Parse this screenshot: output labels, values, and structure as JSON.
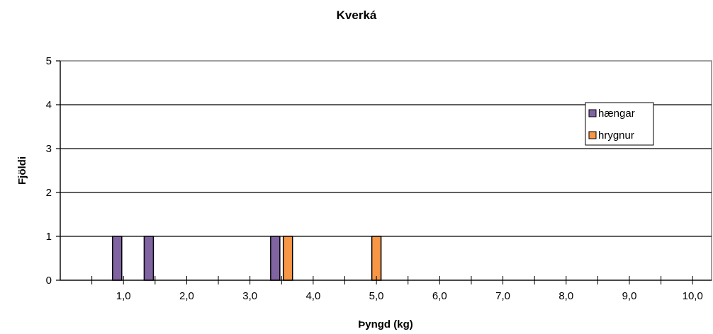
{
  "chart_data": {
    "type": "bar",
    "title": "Kverká",
    "xlabel": "Þyngd (kg)",
    "ylabel": "Fjöldi",
    "ylim": [
      0,
      5
    ],
    "yticks": [
      0,
      1,
      2,
      3,
      4,
      5
    ],
    "xlim": [
      0,
      10.3
    ],
    "xticks": [
      "1,0",
      "2,0",
      "3,0",
      "4,0",
      "5,0",
      "6,0",
      "7,0",
      "8,0",
      "9,0",
      "10,0"
    ],
    "xtick_values": [
      1,
      2,
      3,
      4,
      5,
      6,
      7,
      8,
      9,
      10
    ],
    "grid": true,
    "legend_position": "top-right",
    "series": [
      {
        "name": "hængar",
        "color": "#8064a2",
        "points": [
          {
            "x": 0.9,
            "y": 1
          },
          {
            "x": 1.4,
            "y": 1
          },
          {
            "x": 3.4,
            "y": 1
          }
        ]
      },
      {
        "name": "hrygnur",
        "color": "#f79646",
        "points": [
          {
            "x": 3.6,
            "y": 1
          },
          {
            "x": 5.0,
            "y": 1
          }
        ]
      }
    ]
  }
}
